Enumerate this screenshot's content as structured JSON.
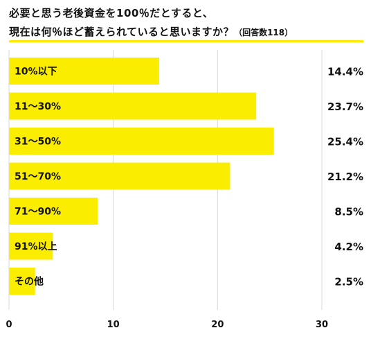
{
  "title": {
    "line1": "必要と思う老後資金を100％だとすると、",
    "line2": "現在は何％ほど蓄えられていると思いますか？",
    "count": "（回答数118）"
  },
  "colors": {
    "bar": "#fbed00",
    "accent": "#ffea00",
    "grid": "#d8d8d8",
    "text": "#111111"
  },
  "chart_data": {
    "type": "bar",
    "orientation": "horizontal",
    "categories": [
      "10%以下",
      "11〜30%",
      "31〜50%",
      "51〜70%",
      "71〜90%",
      "91%以上",
      "その他"
    ],
    "values": [
      14.4,
      23.7,
      25.4,
      21.2,
      8.5,
      4.2,
      2.5
    ],
    "value_labels": [
      "14.4%",
      "23.7%",
      "25.4%",
      "21.2%",
      "8.5%",
      "4.2%",
      "2.5%"
    ],
    "xlim": [
      0,
      30
    ],
    "xticks": [
      "0",
      "10",
      "20",
      "30"
    ],
    "grid": true
  }
}
